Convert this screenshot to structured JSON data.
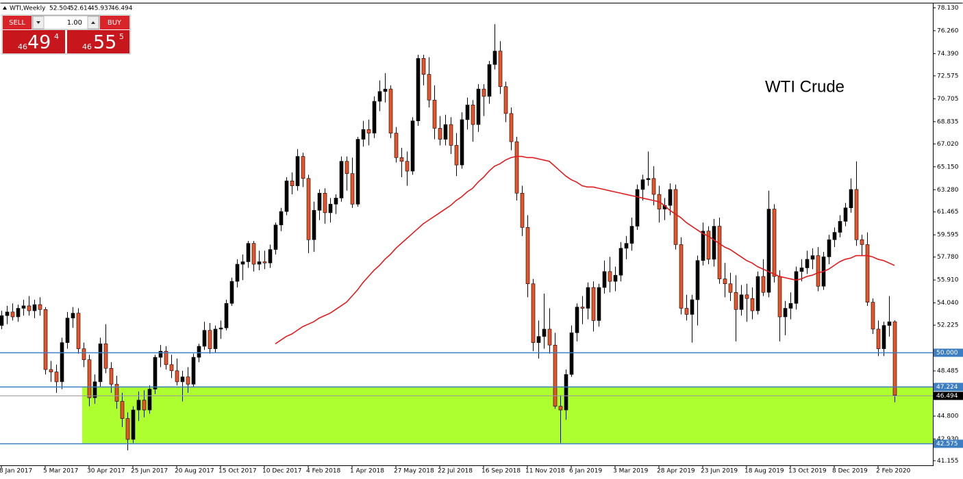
{
  "chart_data": {
    "type": "candlestick",
    "title": "WTI,Weekly",
    "annotation": "WTI Crude",
    "up_color": "#000000",
    "down_color": "#e8542a",
    "ylim": [
      40.78,
      78.49
    ],
    "yticks": [
      {
        "value": 78.13,
        "label": "78.130"
      },
      {
        "value": 76.26,
        "label": "76.260"
      },
      {
        "value": 74.39,
        "label": "74.390"
      },
      72.575,
      70.705,
      68.835,
      {
        "value": 67.02,
        "label": "67.020"
      },
      {
        "value": 65.15,
        "label": "65.150"
      },
      {
        "value": 63.28,
        "label": "63.280"
      },
      61.465,
      59.595,
      {
        "value": 57.78,
        "label": "57.780"
      },
      {
        "value": 55.91,
        "label": "55.910"
      },
      {
        "value": 54.04,
        "label": "54.040"
      },
      52.225,
      48.485,
      {
        "value": 44.8,
        "label": "44.800"
      },
      {
        "value": 42.93,
        "label": "42.930"
      },
      41.155
    ],
    "levels": [
      {
        "value": 50,
        "label": "50.000",
        "color": "#3d7ec2"
      },
      {
        "value": 47.224,
        "label": "47.224",
        "color": "#3d7ec2"
      },
      {
        "value": 42.575,
        "label": "42.575",
        "color": "#3d7ec2"
      }
    ],
    "zone_color": "#adff2f",
    "categories": [
      "8 Jan 2017",
      null,
      null,
      null,
      null,
      null,
      null,
      null,
      "5 Mar 2017",
      null,
      null,
      null,
      null,
      null,
      null,
      null,
      "30 Apr 2017",
      null,
      null,
      null,
      null,
      null,
      null,
      null,
      "25 Jun 2017",
      null,
      null,
      null,
      null,
      null,
      null,
      null,
      "20 Aug 2017",
      null,
      null,
      null,
      null,
      null,
      null,
      null,
      "15 Oct 2017",
      null,
      null,
      null,
      null,
      null,
      null,
      null,
      "10 Dec 2017",
      null,
      null,
      null,
      null,
      null,
      null,
      null,
      "4 Feb 2018",
      null,
      null,
      null,
      null,
      null,
      null,
      null,
      "1 Apr 2018",
      null,
      null,
      null,
      null,
      null,
      null,
      null,
      "27 May 2018",
      null,
      null,
      null,
      null,
      null,
      null,
      null,
      "22 Jul 2018",
      null,
      null,
      null,
      null,
      null,
      null,
      null,
      "16 Sep 2018",
      null,
      null,
      null,
      null,
      null,
      null,
      null,
      "11 Nov 2018",
      null,
      null,
      null,
      null,
      null,
      null,
      null,
      "6 Jan 2019",
      null,
      null,
      null,
      null,
      null,
      null,
      null,
      "3 Mar 2019",
      null,
      null,
      null,
      null,
      null,
      null,
      null,
      "28 Apr 2019",
      null,
      null,
      null,
      null,
      null,
      null,
      null,
      "23 Jun 2019",
      null,
      null,
      null,
      null,
      null,
      null,
      null,
      "18 Aug 2019",
      null,
      null,
      null,
      null,
      null,
      null,
      null,
      "13 Oct 2019",
      null,
      null,
      null,
      null,
      null,
      null,
      null,
      "8 Dec 2019",
      null,
      null,
      null,
      null,
      null,
      null,
      null,
      "2 Feb 2020",
      null,
      null,
      null
    ],
    "open": [
      52.2,
      53.0,
      53.3,
      52.9,
      53.6,
      53.8,
      53.4,
      53.9,
      53.5,
      48.6,
      48.4,
      47.6,
      50.8,
      52.8,
      53.2,
      50.3,
      49.4,
      46.3,
      47.6,
      50.7,
      48.7,
      47.4,
      46.0,
      44.6,
      42.9,
      45.3,
      46.1,
      45.3,
      47.0,
      49.6,
      50.1,
      49.0,
      48.5,
      47.6,
      48.0,
      47.4,
      49.6,
      50.5,
      51.8,
      50.3,
      51.9,
      52.0,
      54.0,
      55.8,
      57.2,
      57.4,
      58.9,
      57.2,
      57.4,
      57.3,
      58.4,
      60.4,
      61.5,
      64.0,
      63.6,
      66.0,
      64.2,
      59.2,
      61.6,
      63.0,
      61.4,
      62.1,
      62.6,
      65.6,
      64.6,
      62.1,
      67.4,
      68.2,
      67.9,
      70.5,
      71.3,
      71.5,
      67.9,
      65.9,
      65.6,
      64.8,
      68.9,
      74.0,
      72.7,
      70.6,
      68.3,
      67.4,
      68.6,
      66.9,
      65.3,
      69.0,
      70.2,
      68.6,
      71.5,
      70.9,
      73.5,
      74.6,
      71.7,
      69.5,
      67.2,
      63.0,
      60.2,
      55.6,
      50.8,
      51.3,
      51.9,
      50.6,
      45.6,
      45.3,
      48.2,
      51.6,
      53.7,
      53.6,
      55.3,
      52.6,
      55.3,
      56.6,
      55.8,
      56.3,
      58.5,
      58.9,
      60.3,
      63.3,
      64.1,
      64.2,
      62.9,
      61.7,
      62.0,
      63.3,
      58.8,
      53.6,
      53.1,
      54.3,
      57.5,
      59.9,
      57.6,
      60.3,
      56.0,
      55.6,
      54.9,
      53.5,
      54.7,
      54.4,
      53.4,
      56.2,
      54.9,
      61.7,
      56.2,
      52.9,
      53.6,
      54.0,
      56.6,
      56.9,
      57.6,
      57.9,
      55.4,
      57.8,
      59.2,
      59.8,
      60.7,
      61.8,
      63.3,
      59.2,
      58.8,
      54.1,
      51.9,
      50.3,
      52.2,
      52.504
    ],
    "high": [
      53.4,
      53.8,
      54.0,
      53.9,
      54.3,
      54.6,
      54.3,
      54.5,
      53.7,
      49.3,
      49.0,
      51.2,
      53.3,
      53.7,
      53.6,
      50.8,
      49.8,
      48.2,
      51.2,
      52.3,
      49.2,
      48.1,
      46.7,
      45.1,
      45.6,
      46.8,
      46.9,
      47.3,
      49.8,
      50.6,
      50.5,
      49.8,
      49.5,
      48.5,
      48.8,
      49.9,
      50.7,
      52.5,
      52.4,
      52.2,
      52.6,
      54.3,
      56.1,
      57.6,
      58.0,
      59.1,
      59.1,
      58.3,
      58.3,
      58.8,
      60.6,
      61.8,
      64.3,
      64.7,
      66.6,
      66.3,
      64.5,
      62.3,
      63.3,
      63.4,
      62.6,
      62.9,
      66.0,
      66.0,
      65.9,
      67.6,
      68.9,
      69.0,
      70.9,
      72.2,
      72.8,
      71.8,
      68.4,
      66.7,
      66.4,
      69.2,
      74.3,
      74.3,
      74.1,
      71.8,
      69.3,
      69.4,
      69.2,
      67.9,
      69.6,
      70.8,
      70.6,
      71.9,
      71.9,
      73.8,
      76.8,
      75.4,
      72.1,
      70.0,
      67.6,
      63.6,
      61.2,
      56.0,
      52.6,
      54.8,
      53.6,
      51.6,
      46.5,
      48.6,
      52.2,
      54.0,
      54.6,
      55.7,
      55.8,
      55.6,
      57.5,
      57.8,
      57.0,
      59.0,
      59.5,
      61.0,
      63.7,
      64.5,
      66.4,
      65.2,
      63.6,
      62.6,
      63.8,
      63.7,
      59.4,
      54.7,
      54.7,
      57.9,
      60.6,
      60.3,
      60.9,
      61.0,
      57.3,
      56.5,
      56.3,
      55.5,
      55.6,
      55.3,
      56.6,
      57.6,
      63.2,
      62.1,
      56.7,
      54.2,
      54.9,
      57.0,
      57.6,
      58.3,
      58.5,
      58.6,
      58.2,
      59.6,
      60.2,
      61.2,
      62.2,
      64.2,
      65.6,
      59.6,
      59.8,
      54.4,
      52.6,
      52.5,
      54.6,
      52.614
    ],
    "low": [
      51.9,
      52.3,
      52.6,
      52.5,
      53.0,
      53.0,
      52.8,
      53.0,
      48.2,
      47.6,
      46.7,
      47.0,
      50.3,
      52.0,
      49.9,
      48.8,
      45.6,
      45.8,
      47.2,
      48.3,
      46.7,
      45.4,
      43.9,
      42.0,
      42.6,
      44.4,
      44.7,
      45.0,
      46.6,
      48.8,
      48.6,
      47.9,
      47.3,
      46.0,
      46.7,
      47.2,
      49.2,
      50.2,
      49.9,
      50.0,
      51.1,
      51.8,
      53.8,
      55.3,
      55.9,
      56.9,
      56.6,
      56.7,
      56.8,
      56.9,
      58.0,
      59.9,
      61.2,
      62.9,
      63.2,
      63.5,
      58.1,
      58.2,
      60.8,
      60.5,
      60.6,
      61.3,
      62.3,
      63.2,
      61.8,
      61.9,
      66.8,
      66.9,
      67.5,
      69.7,
      70.4,
      67.5,
      65.5,
      64.3,
      63.6,
      64.5,
      68.5,
      71.8,
      70.0,
      67.4,
      66.9,
      66.9,
      66.2,
      64.4,
      65.0,
      68.2,
      67.2,
      68.0,
      69.3,
      70.3,
      73.1,
      71.1,
      68.8,
      66.5,
      62.4,
      59.5,
      54.5,
      50.1,
      49.5,
      50.3,
      49.9,
      45.4,
      42.6,
      44.5,
      48.0,
      50.9,
      52.3,
      52.7,
      51.7,
      52.1,
      54.8,
      54.9,
      55.0,
      55.8,
      57.6,
      58.3,
      60.0,
      62.4,
      63.6,
      62.0,
      60.6,
      60.8,
      61.2,
      58.4,
      53.1,
      52.6,
      50.8,
      52.2,
      57.1,
      57.2,
      57.0,
      55.6,
      54.5,
      54.2,
      50.9,
      53.0,
      52.5,
      52.7,
      53.1,
      54.6,
      54.5,
      55.7,
      50.9,
      51.4,
      52.7,
      53.5,
      55.8,
      56.4,
      56.8,
      55.0,
      55.1,
      57.2,
      58.6,
      59.4,
      60.3,
      61.4,
      58.7,
      57.9,
      53.8,
      51.5,
      49.7,
      49.7,
      51.3,
      45.937
    ],
    "close": [
      53.0,
      53.3,
      52.9,
      53.6,
      53.8,
      53.4,
      53.9,
      53.5,
      48.6,
      48.4,
      47.6,
      50.8,
      52.8,
      53.2,
      50.3,
      49.4,
      46.3,
      47.6,
      50.7,
      48.7,
      47.4,
      46.0,
      44.6,
      42.9,
      45.3,
      46.1,
      45.3,
      47.0,
      49.6,
      50.1,
      49.0,
      48.5,
      47.6,
      48.0,
      47.4,
      49.6,
      50.5,
      51.8,
      50.3,
      51.9,
      52.0,
      54.0,
      55.8,
      57.2,
      57.4,
      58.9,
      57.2,
      57.4,
      57.3,
      58.4,
      60.4,
      61.5,
      64.0,
      63.6,
      66.0,
      64.2,
      59.2,
      61.6,
      63.0,
      61.4,
      62.1,
      62.6,
      65.6,
      64.6,
      62.1,
      67.4,
      68.2,
      67.9,
      70.5,
      71.3,
      71.5,
      67.9,
      65.9,
      65.6,
      64.8,
      68.9,
      74.0,
      72.7,
      70.6,
      68.3,
      67.4,
      68.6,
      66.9,
      65.3,
      69.0,
      70.2,
      68.6,
      71.5,
      70.9,
      73.5,
      74.6,
      71.7,
      69.5,
      67.2,
      63.0,
      60.2,
      55.6,
      50.8,
      51.3,
      51.9,
      50.6,
      45.6,
      45.3,
      48.2,
      51.6,
      53.7,
      53.6,
      55.3,
      52.6,
      55.3,
      56.6,
      55.8,
      56.3,
      58.5,
      58.9,
      60.3,
      63.3,
      64.1,
      64.2,
      62.9,
      61.7,
      62.0,
      63.3,
      58.8,
      53.6,
      53.1,
      54.3,
      57.5,
      59.9,
      57.6,
      60.3,
      56.0,
      55.6,
      54.9,
      53.5,
      54.7,
      54.4,
      53.4,
      56.2,
      54.9,
      61.7,
      56.2,
      52.9,
      53.6,
      54.0,
      56.6,
      56.9,
      57.6,
      57.9,
      55.4,
      57.8,
      59.2,
      59.8,
      60.7,
      61.8,
      63.3,
      59.2,
      58.8,
      54.1,
      51.9,
      50.3,
      52.2,
      52.5,
      46.494
    ],
    "ma": {
      "color": "#e31a1c",
      "values": [
        null,
        null,
        null,
        null,
        null,
        null,
        null,
        null,
        null,
        null,
        null,
        null,
        null,
        null,
        null,
        null,
        null,
        null,
        null,
        null,
        null,
        null,
        null,
        null,
        null,
        null,
        null,
        null,
        null,
        null,
        null,
        null,
        null,
        null,
        null,
        null,
        null,
        null,
        null,
        null,
        null,
        null,
        null,
        null,
        null,
        null,
        null,
        null,
        null,
        null,
        50.7,
        51.0,
        51.3,
        51.5,
        51.8,
        52.1,
        52.3,
        52.5,
        52.8,
        53.0,
        53.2,
        53.5,
        53.8,
        54.1,
        54.6,
        55.1,
        55.7,
        56.2,
        56.7,
        57.1,
        57.6,
        58.0,
        58.5,
        58.9,
        59.3,
        59.7,
        60.1,
        60.5,
        60.8,
        61.1,
        61.4,
        61.7,
        62.0,
        62.4,
        62.7,
        63.1,
        63.4,
        63.9,
        64.3,
        64.8,
        65.2,
        65.4,
        65.7,
        65.9,
        66.0,
        66.0,
        65.9,
        65.9,
        65.8,
        65.7,
        65.6,
        65.2,
        64.8,
        64.4,
        64.1,
        63.9,
        63.6,
        63.5,
        63.5,
        63.4,
        63.3,
        63.2,
        63.1,
        63.0,
        62.9,
        62.8,
        62.7,
        62.6,
        62.5,
        62.4,
        62.3,
        62.0,
        61.6,
        61.3,
        61.0,
        60.6,
        60.3,
        60.0,
        59.7,
        59.5,
        59.2,
        58.9,
        58.6,
        58.4,
        58.1,
        57.8,
        57.5,
        57.3,
        57.0,
        56.8,
        56.6,
        56.4,
        56.2,
        56.1,
        56.0,
        55.9,
        56.0,
        56.2,
        56.3,
        56.5,
        56.6,
        56.8,
        57.1,
        57.4,
        57.6,
        57.7,
        57.9,
        57.9,
        57.9,
        57.8,
        57.6,
        57.5,
        57.3,
        57.1
      ]
    }
  },
  "trade_panel": {
    "sell_label": "SELL",
    "buy_label": "BUY",
    "volume": "1.00",
    "bid": {
      "big": "46",
      "main": "49",
      "pip": "4"
    },
    "ask": {
      "big": "46",
      "main": "55",
      "pip": "5"
    }
  }
}
